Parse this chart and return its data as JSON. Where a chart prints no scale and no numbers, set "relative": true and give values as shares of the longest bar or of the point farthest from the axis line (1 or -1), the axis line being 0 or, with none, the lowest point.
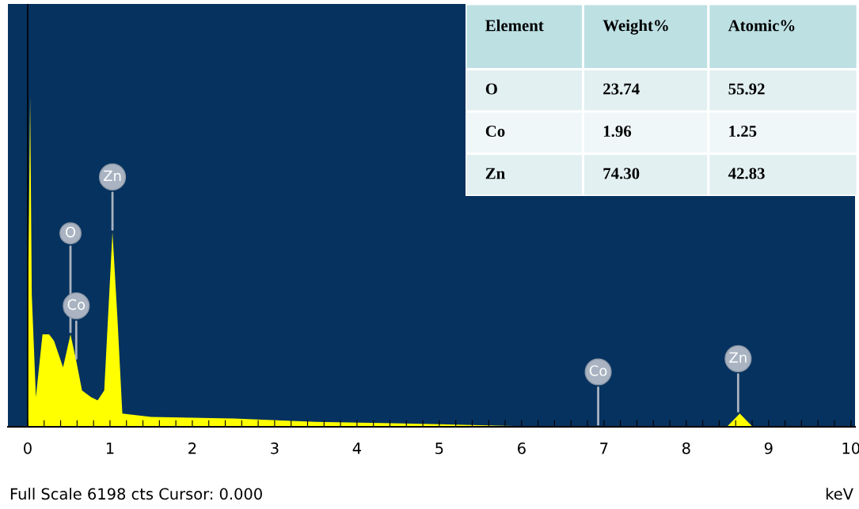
{
  "chart_data": [
    {
      "type": "area",
      "relative": true,
      "xlabel": "keV",
      "color": "#ffff00",
      "x": [
        0.0,
        0.01,
        0.03,
        0.05,
        0.1,
        0.18,
        0.26,
        0.32,
        0.43,
        0.52,
        0.59,
        0.66,
        0.77,
        0.85,
        0.93,
        1.03,
        1.09,
        1.15,
        1.5,
        2.5,
        3.5,
        5.0,
        5.5,
        6.0,
        8.5,
        8.65,
        8.8,
        10.0
      ],
      "values": [
        0.0,
        0.5,
        1.0,
        0.4,
        0.09,
        0.28,
        0.28,
        0.26,
        0.18,
        0.28,
        0.2,
        0.11,
        0.09,
        0.08,
        0.11,
        0.59,
        0.33,
        0.04,
        0.03,
        0.025,
        0.015,
        0.008,
        0.005,
        0.002,
        0.002,
        0.04,
        0.002,
        0.0
      ],
      "xlim": [
        -0.24,
        10.05
      ],
      "xticks": [
        0,
        {
          "value": 0.2,
          "label": null
        },
        {
          "value": 0.4,
          "label": null
        },
        {
          "value": 0.6,
          "label": null
        },
        {
          "value": 0.8,
          "label": null
        },
        1,
        {
          "value": 1.2,
          "label": null
        },
        {
          "value": 1.4,
          "label": null
        },
        {
          "value": 1.6,
          "label": null
        },
        {
          "value": 1.8,
          "label": null
        },
        2,
        {
          "value": 2.2,
          "label": null
        },
        {
          "value": 2.4,
          "label": null
        },
        {
          "value": 2.6,
          "label": null
        },
        {
          "value": 2.8,
          "label": null
        },
        3,
        {
          "value": 3.2,
          "label": null
        },
        {
          "value": 3.4,
          "label": null
        },
        {
          "value": 3.6,
          "label": null
        },
        {
          "value": 3.8,
          "label": null
        },
        4,
        {
          "value": 4.2,
          "label": null
        },
        {
          "value": 4.4,
          "label": null
        },
        {
          "value": 4.6,
          "label": null
        },
        {
          "value": 4.8,
          "label": null
        },
        5,
        {
          "value": 5.2,
          "label": null
        },
        {
          "value": 5.4,
          "label": null
        },
        {
          "value": 5.6,
          "label": null
        },
        {
          "value": 5.8,
          "label": null
        },
        6,
        {
          "value": 6.2,
          "label": null
        },
        {
          "value": 6.4,
          "label": null
        },
        {
          "value": 6.6,
          "label": null
        },
        {
          "value": 6.8,
          "label": null
        },
        7,
        {
          "value": 7.2,
          "label": null
        },
        {
          "value": 7.4,
          "label": null
        },
        {
          "value": 7.6,
          "label": null
        },
        {
          "value": 7.8,
          "label": null
        },
        8,
        {
          "value": 8.2,
          "label": null
        },
        {
          "value": 8.4,
          "label": null
        },
        {
          "value": 8.6,
          "label": null
        },
        {
          "value": 8.8,
          "label": null
        },
        9,
        {
          "value": 9.2,
          "label": null
        },
        {
          "value": 9.4,
          "label": null
        },
        {
          "value": 9.6,
          "label": null
        },
        {
          "value": 9.8,
          "label": null
        },
        10
      ],
      "tick_labels": "x",
      "ref_lines": [
        {
          "axis": "x",
          "value": 0,
          "color": "#000000"
        }
      ],
      "annotations": [
        {
          "text": "Zn",
          "x": 1.03,
          "y": 0.59
        },
        {
          "text": "O",
          "x": 0.52,
          "y": 0.28
        },
        {
          "text": "Co",
          "x": 0.59,
          "y": 0.2
        },
        {
          "text": "Co",
          "x": 6.93,
          "y": 0.0
        },
        {
          "text": "Zn",
          "x": 8.63,
          "y": 0.04
        },
        "Full Scale 6198 cts Cursor: 0.000"
      ]
    },
    {
      "type": "other",
      "annotations": [
        "Element",
        "Weight%",
        "Atomic%",
        "O",
        "23.74",
        "55.92",
        "Co",
        "1.96",
        "1.25",
        "Zn",
        "74.30",
        "42.83"
      ]
    }
  ]
}
